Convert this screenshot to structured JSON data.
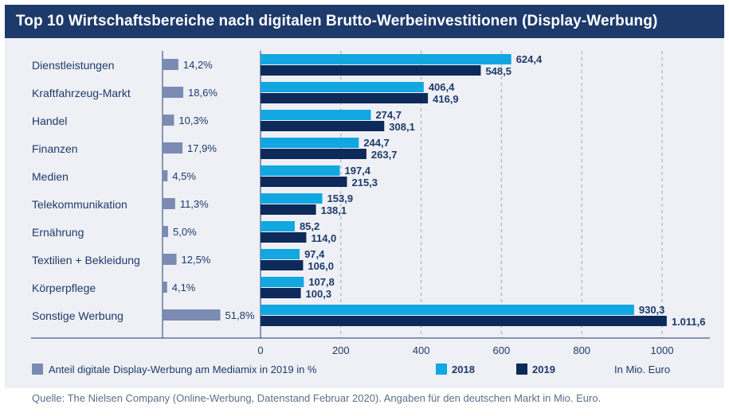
{
  "title": "Top 10 Wirtschaftsbereiche nach digitalen Brutto-Werbeinvestitionen (Display-Werbung)",
  "source": "Quelle: The Nielsen Company (Online-Werbung, Datenstand Februar 2020). Angaben für den deutschen Markt in Mio. Euro.",
  "colors": {
    "title_bg": "#1d3a6b",
    "panel_bg": "#eef0f5",
    "share": "#7b8bb3",
    "y2018": "#12a7e0",
    "y2019": "#0e2a5a",
    "text": "#1d3a6b"
  },
  "chart_data": {
    "type": "bar",
    "orientation": "horizontal",
    "categories": [
      "Dienstleistungen",
      "Kraftfahrzeug-Markt",
      "Handel",
      "Finanzen",
      "Medien",
      "Telekommunikation",
      "Ernährung",
      "Textilien + Bekleidung",
      "Körperpflege",
      "Sonstige Werbung"
    ],
    "share": {
      "name": "Anteil digitale Display-Werbung am Mediamix in 2019 in %",
      "values": [
        14.2,
        18.6,
        10.3,
        17.9,
        4.5,
        11.3,
        5.0,
        12.5,
        4.1,
        51.8
      ],
      "labels": [
        "14,2%",
        "18,6%",
        "10,3%",
        "17,9%",
        "4,5%",
        "11,3%",
        "5,0%",
        "12,5%",
        "4,1%",
        "51,8%"
      ]
    },
    "series": [
      {
        "name": "2018",
        "values": [
          624.4,
          406.4,
          274.7,
          244.7,
          197.4,
          153.9,
          85.2,
          97.4,
          107.8,
          930.3
        ],
        "labels": [
          "624,4",
          "406,4",
          "274,7",
          "244,7",
          "197,4",
          "153,9",
          "85,2",
          "97,4",
          "107,8",
          "930,3"
        ]
      },
      {
        "name": "2019",
        "values": [
          548.5,
          416.9,
          308.1,
          263.7,
          215.3,
          138.1,
          114.0,
          106.0,
          100.3,
          1011.6
        ],
        "labels": [
          "548,5",
          "416,9",
          "308,1",
          "263,7",
          "215,3",
          "138,1",
          "114,0",
          "106,0",
          "100,3",
          "1.011,6"
        ]
      }
    ],
    "xlim": [
      0,
      1100
    ],
    "xticks": [
      0,
      200,
      400,
      600,
      800,
      1000
    ],
    "xtick_labels": [
      "0",
      "200",
      "400",
      "600",
      "800",
      "1000"
    ],
    "unit_note": "In Mio. Euro",
    "legend": [
      "Anteil digitale Display-Werbung am Mediamix in 2019 in %",
      "2018",
      "2019",
      "In Mio. Euro"
    ],
    "legend_position": "bottom",
    "grid": "vertical dashed"
  }
}
